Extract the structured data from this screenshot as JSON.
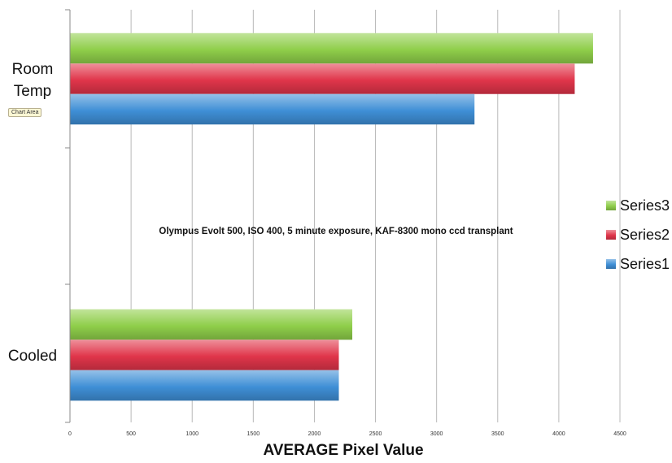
{
  "chart_data": {
    "type": "bar",
    "orientation": "horizontal",
    "categories": [
      "Room Temp",
      "Cooled"
    ],
    "category_lines": [
      [
        "Room",
        "Temp"
      ],
      [
        "Cooled"
      ]
    ],
    "series": [
      {
        "name": "Series1",
        "values": [
          3310,
          2200
        ],
        "color": "#3f8fd6"
      },
      {
        "name": "Series2",
        "values": [
          4130,
          2200
        ],
        "color": "#e0354a"
      },
      {
        "name": "Series3",
        "values": [
          4280,
          2310
        ],
        "color": "#8fce4a"
      }
    ],
    "xlabel": "AVERAGE  Pixel Value",
    "xlim": [
      0,
      4500
    ],
    "xticks": [
      "0",
      "500",
      "1000",
      "1500",
      "2000",
      "2500",
      "3000",
      "3500",
      "4000",
      "4500"
    ],
    "grid": true,
    "legend_position": "right",
    "legend_order": [
      "Series3",
      "Series2",
      "Series1"
    ],
    "annotation": "Olympus Evolt 500, ISO 400, 5 minute exposure, KAF-8300 mono ccd transplant"
  },
  "tooltip": "Chart Area"
}
